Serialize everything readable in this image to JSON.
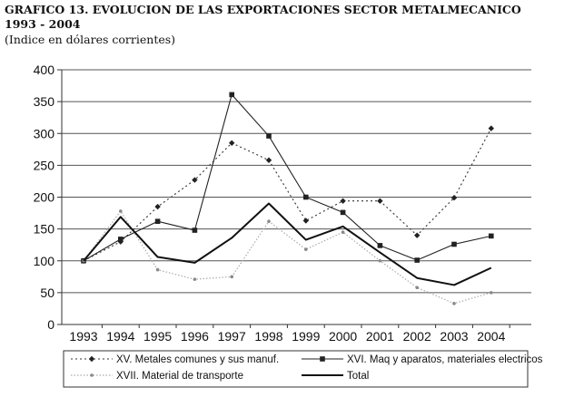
{
  "header": {
    "title": "GRAFICO 13. EVOLUCION DE LAS EXPORTACIONES SECTOR METALMECANICO\n1993 - 2004",
    "subtitle": "(Indice en dólares corrientes)"
  },
  "chart_data": {
    "type": "line",
    "title": "GRAFICO 13. EVOLUCION DE LAS EXPORTACIONES SECTOR METALMECANICO 1993 - 2004",
    "subtitle": "(Indice en dólares corrientes)",
    "xlabel": "",
    "ylabel": "",
    "ylim": [
      0,
      400
    ],
    "yticks": [
      0,
      50,
      100,
      150,
      200,
      250,
      300,
      350,
      400
    ],
    "grid": true,
    "legend_position": "bottom",
    "categories": [
      "1993",
      "1994",
      "1995",
      "1996",
      "1997",
      "1998",
      "1999",
      "2000",
      "2001",
      "2002",
      "2003",
      "2004"
    ],
    "series": [
      {
        "name": "XV. Metales comunes y sus manuf.",
        "style": "dotted-diamond",
        "color": "#333333",
        "values": [
          100,
          130,
          185,
          227,
          285,
          258,
          163,
          194,
          194,
          140,
          199,
          308
        ]
      },
      {
        "name": "XVI. Maq y aparatos, materiales electricos",
        "style": "solid-square",
        "color": "#222222",
        "values": [
          100,
          134,
          162,
          148,
          361,
          296,
          200,
          176,
          124,
          101,
          126,
          139
        ]
      },
      {
        "name": "XVII. Material de transporte",
        "style": "light-dotted",
        "color": "#aaaaaa",
        "values": [
          100,
          178,
          86,
          71,
          75,
          162,
          118,
          145,
          100,
          58,
          33,
          50
        ]
      },
      {
        "name": "Total",
        "style": "thick-solid",
        "color": "#111111",
        "values": [
          100,
          169,
          106,
          97,
          136,
          190,
          133,
          154,
          113,
          73,
          62,
          89
        ]
      }
    ]
  }
}
